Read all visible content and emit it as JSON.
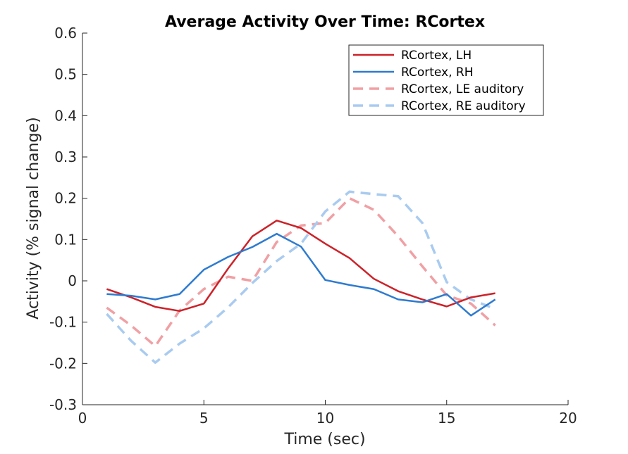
{
  "chart_data": {
    "type": "line",
    "title": "Average Activity Over Time: RCortex",
    "xlabel": "Time (sec)",
    "ylabel": "Activity (% signal change)",
    "xlim": [
      0,
      20
    ],
    "ylim": [
      -0.3,
      0.6
    ],
    "x_ticks": [
      0,
      5,
      10,
      15,
      20
    ],
    "x_tick_labels": [
      "0",
      "5",
      "10",
      "15",
      "20"
    ],
    "y_ticks": [
      -0.3,
      -0.2,
      -0.1,
      0,
      0.1,
      0.2,
      0.3,
      0.4,
      0.5,
      0.6
    ],
    "y_tick_labels": [
      "-0.3",
      "-0.2",
      "-0.1",
      "0",
      "0.1",
      "0.2",
      "0.3",
      "0.4",
      "0.5",
      "0.6"
    ],
    "grid": false,
    "legend_position": "top-right",
    "x": [
      1,
      2,
      3,
      4,
      5,
      6,
      7,
      8,
      9,
      10,
      11,
      12,
      13,
      14,
      15,
      16,
      17
    ],
    "series": [
      {
        "name": "RCortex, LH",
        "color": "#cc2229",
        "style": "solid",
        "values": [
          -0.02,
          -0.04,
          -0.063,
          -0.073,
          -0.055,
          0.03,
          0.108,
          0.146,
          0.128,
          0.09,
          0.055,
          0.005,
          -0.025,
          -0.045,
          -0.062,
          -0.04,
          -0.03
        ]
      },
      {
        "name": "RCortex, RH",
        "color": "#2e7bcf",
        "style": "solid",
        "values": [
          -0.032,
          -0.036,
          -0.045,
          -0.032,
          0.027,
          0.058,
          0.082,
          0.114,
          0.083,
          0.002,
          -0.01,
          -0.02,
          -0.045,
          -0.052,
          -0.032,
          -0.084,
          -0.045
        ]
      },
      {
        "name": "RCortex, LE auditory",
        "color": "#f0a0a4",
        "style": "dashed",
        "values": [
          -0.065,
          -0.108,
          -0.158,
          -0.072,
          -0.02,
          0.01,
          0.0,
          0.094,
          0.134,
          0.14,
          0.2,
          0.172,
          0.108,
          0.035,
          -0.035,
          -0.055,
          -0.108
        ]
      },
      {
        "name": "RCortex, RE auditory",
        "color": "#a9cbf0",
        "style": "dashed",
        "values": [
          -0.08,
          -0.145,
          -0.198,
          -0.152,
          -0.115,
          -0.064,
          -0.005,
          0.048,
          0.09,
          0.168,
          0.216,
          0.21,
          0.205,
          0.14,
          -0.003,
          -0.045,
          -0.068
        ]
      }
    ]
  }
}
